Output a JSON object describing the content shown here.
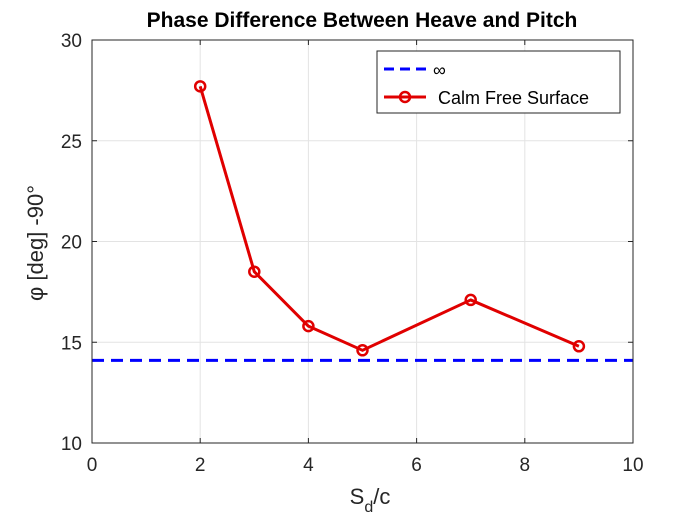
{
  "chart_data": {
    "type": "line",
    "title": "Phase Difference Between Heave and Pitch",
    "xlabel_main": "S",
    "xlabel_sub": "d",
    "xlabel_rest": "/c",
    "ylabel": "φ [deg] -90°",
    "xlim": [
      0,
      10
    ],
    "ylim": [
      10,
      30
    ],
    "xticks": [
      0,
      2,
      4,
      6,
      8,
      10
    ],
    "yticks": [
      10,
      15,
      20,
      25,
      30
    ],
    "grid": true,
    "legend_position": "top-right",
    "reference_line": {
      "name": "∞",
      "y": 14.1,
      "style": "dashed",
      "color": "#0000ff"
    },
    "series": [
      {
        "name": "Calm Free Surface",
        "color": "#e00000",
        "marker": "circle",
        "x": [
          2,
          3,
          4,
          5,
          7,
          9
        ],
        "y": [
          27.7,
          18.5,
          15.8,
          14.6,
          17.1,
          14.8
        ]
      }
    ]
  }
}
